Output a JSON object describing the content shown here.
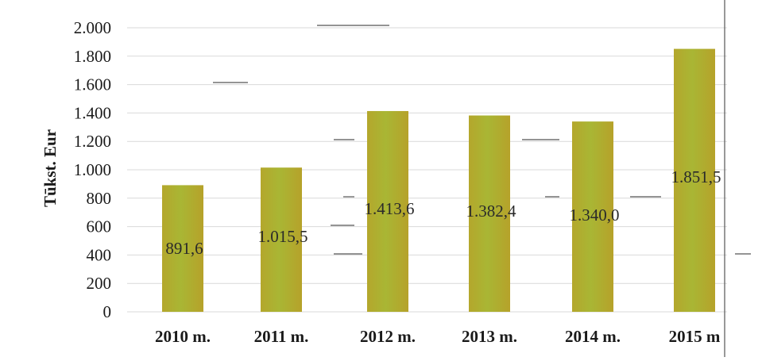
{
  "chart_data": {
    "type": "bar",
    "title": "",
    "xlabel": "",
    "ylabel": "Tūkst. Eur",
    "categories": [
      "2010 m.",
      "2011 m.",
      "2012 m.",
      "2013 m.",
      "2014 m.",
      "2015 m"
    ],
    "values": [
      891.6,
      1015.5,
      1413.6,
      1382.4,
      1340.0,
      1851.5
    ],
    "data_labels": [
      "891,6",
      "1.015,5",
      "1.413,6",
      "1.382,4",
      "1.340,0",
      "1.851,5"
    ],
    "ylim": [
      0,
      2000
    ],
    "yticks": [
      0,
      200,
      400,
      600,
      800,
      1000,
      1200,
      1400,
      1600,
      1800,
      2000
    ],
    "ytick_labels": [
      "0",
      "200",
      "400",
      "600",
      "800",
      "1.000",
      "1.200",
      "1.400",
      "1.600",
      "1.800",
      "2.000"
    ],
    "grid": true,
    "legend": "none",
    "bar_color": "#a9b634"
  }
}
